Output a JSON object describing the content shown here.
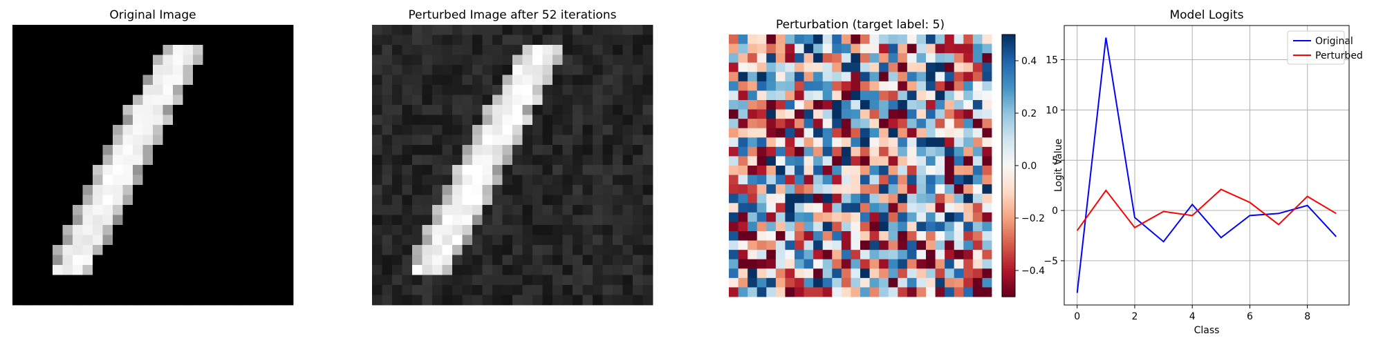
{
  "panels": {
    "original": {
      "title": "Original Image"
    },
    "perturbed": {
      "title": "Perturbed Image after 52 iterations"
    },
    "perturbation": {
      "title": "Perturbation (target label: 5)",
      "colorbar": {
        "colormap": "RdBu",
        "vmin": -0.5,
        "vmax": 0.5,
        "ticks": [
          "−0.4",
          "−0.2",
          "0.0",
          "0.2",
          "0.4"
        ],
        "tick_values": [
          -0.4,
          -0.2,
          0.0,
          0.2,
          0.4
        ]
      }
    },
    "logits": {
      "title": "Model Logits"
    }
  },
  "chart_data": [
    {
      "type": "heatmap",
      "title": "Original Image",
      "grid": [
        28,
        28
      ],
      "colormap": "gray"
    },
    {
      "type": "heatmap",
      "title": "Perturbed Image after 52 iterations",
      "grid": [
        28,
        28
      ],
      "colormap": "gray"
    },
    {
      "type": "heatmap",
      "title": "Perturbation (target label: 5)",
      "grid": [
        28,
        28
      ],
      "colormap": "RdBu",
      "range": [
        -0.5,
        0.5
      ]
    },
    {
      "type": "line",
      "title": "Model Logits",
      "xlabel": "Class",
      "ylabel": "Logit Value",
      "x": [
        0,
        1,
        2,
        3,
        4,
        5,
        6,
        7,
        8,
        9
      ],
      "xlim": [
        -0.45,
        9.45
      ],
      "ylim": [
        -9.4,
        18.4
      ],
      "xticks": [
        0,
        2,
        4,
        6,
        8
      ],
      "yticks": [
        -5,
        0,
        5,
        10,
        15
      ],
      "grid": true,
      "legend": "top-right",
      "series": [
        {
          "name": "Original",
          "color": "#0000ff",
          "values": [
            -8.2,
            17.2,
            -0.7,
            -3.1,
            0.6,
            -2.7,
            -0.5,
            -0.3,
            0.5,
            -2.6
          ]
        },
        {
          "name": "Perturbed",
          "color": "#ff0000",
          "values": [
            -2.0,
            2.0,
            -1.7,
            -0.1,
            -0.5,
            2.1,
            0.8,
            -1.4,
            1.4,
            -0.3
          ]
        }
      ]
    }
  ]
}
